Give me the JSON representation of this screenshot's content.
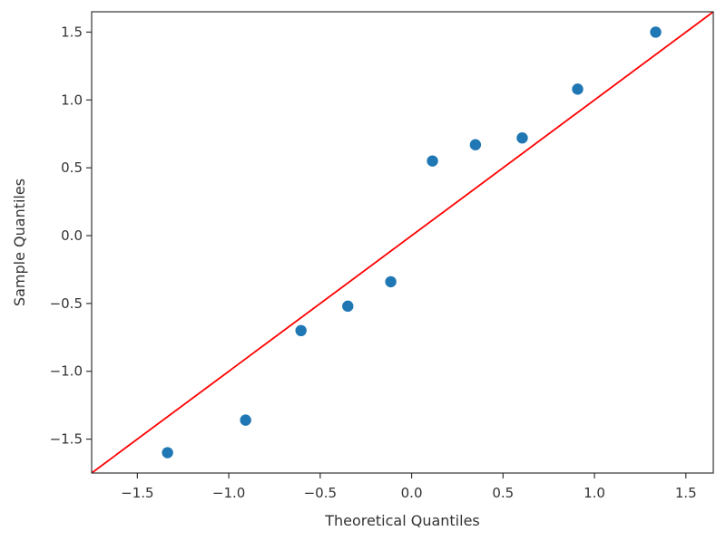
{
  "chart_data": {
    "type": "scatter",
    "title": "",
    "xlabel": "Theoretical Quantiles",
    "ylabel": "Sample Quantiles",
    "xlim": [
      -1.75,
      1.65
    ],
    "ylim": [
      -1.75,
      1.65
    ],
    "xticks": [
      -1.5,
      -1.0,
      -0.5,
      0.0,
      0.5,
      1.0,
      1.5
    ],
    "yticks": [
      -1.5,
      -1.0,
      -0.5,
      0.0,
      0.5,
      1.0,
      1.5
    ],
    "xtick_labels": [
      "−1.5",
      "−1.0",
      "−0.5",
      "0.0",
      "0.5",
      "1.0",
      "1.5"
    ],
    "ytick_labels": [
      "−1.5",
      "−1.0",
      "−0.5",
      "0.0",
      "0.5",
      "1.0",
      "1.5"
    ],
    "grid": false,
    "series": [
      {
        "type": "scatter",
        "color": "#1f77b4",
        "x": [
          -1.335,
          -0.908,
          -0.605,
          -0.349,
          -0.114,
          0.114,
          0.349,
          0.605,
          0.908,
          1.335
        ],
        "y": [
          -1.6,
          -1.36,
          -0.7,
          -0.52,
          -0.34,
          0.55,
          0.67,
          0.72,
          1.08,
          1.5
        ]
      },
      {
        "type": "line",
        "color": "#ff0000",
        "x": [
          -1.75,
          1.65
        ],
        "y": [
          -1.75,
          1.65
        ]
      }
    ]
  }
}
